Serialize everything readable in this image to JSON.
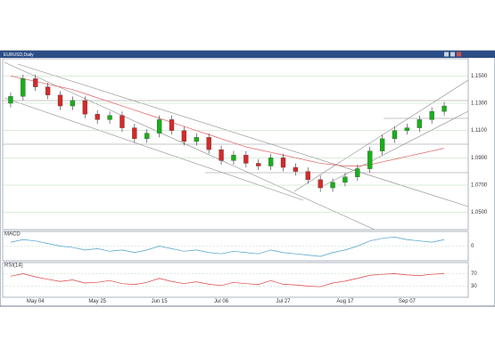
{
  "header": {
    "title": "EURUSD,Daily"
  },
  "chart_data": [
    {
      "type": "candlestick",
      "categories": [
        null,
        null,
        "May 04",
        null,
        null,
        null,
        null,
        "May 25",
        null,
        null,
        null,
        null,
        "Jun 15",
        null,
        null,
        null,
        null,
        "Jul 06",
        null,
        null,
        null,
        null,
        "Jul 27",
        null,
        null,
        null,
        null,
        "Aug 17",
        null,
        null,
        null,
        null,
        "Sep 07",
        null,
        null,
        null
      ],
      "opens": [
        1.13,
        1.135,
        1.148,
        1.142,
        1.136,
        1.128,
        1.132,
        1.122,
        1.118,
        1.121,
        1.112,
        1.104,
        1.108,
        1.118,
        1.11,
        1.102,
        1.105,
        1.096,
        1.088,
        1.092,
        1.086,
        1.084,
        1.09,
        1.083,
        1.08,
        1.074,
        1.068,
        1.072,
        1.076,
        1.082,
        1.095,
        1.104,
        1.11,
        1.112,
        1.118,
        1.124
      ],
      "highs": [
        1.138,
        1.151,
        1.151,
        1.145,
        1.139,
        1.135,
        1.135,
        1.125,
        1.124,
        1.124,
        1.115,
        1.111,
        1.121,
        1.121,
        1.113,
        1.108,
        1.108,
        1.099,
        1.095,
        1.095,
        1.089,
        1.093,
        1.093,
        1.086,
        1.083,
        1.077,
        1.075,
        1.079,
        1.085,
        1.098,
        1.107,
        1.113,
        1.115,
        1.121,
        1.127,
        1.131
      ],
      "lows": [
        1.127,
        1.132,
        1.139,
        1.133,
        1.125,
        1.125,
        1.119,
        1.115,
        1.115,
        1.109,
        1.101,
        1.101,
        1.105,
        1.107,
        1.099,
        1.099,
        1.093,
        1.085,
        1.085,
        1.083,
        1.081,
        1.081,
        1.08,
        1.077,
        1.071,
        1.065,
        1.065,
        1.069,
        1.073,
        1.079,
        1.092,
        1.101,
        1.107,
        1.109,
        1.115,
        1.121
      ],
      "closes": [
        1.135,
        1.148,
        1.142,
        1.136,
        1.128,
        1.132,
        1.122,
        1.118,
        1.121,
        1.112,
        1.104,
        1.108,
        1.118,
        1.11,
        1.102,
        1.105,
        1.096,
        1.088,
        1.092,
        1.086,
        1.084,
        1.09,
        1.083,
        1.08,
        1.074,
        1.068,
        1.072,
        1.076,
        1.082,
        1.095,
        1.104,
        1.11,
        1.112,
        1.118,
        1.124,
        1.128
      ],
      "up_color": "#18b018",
      "down_color": "#d42a2a",
      "ma_values": [
        1.15,
        1.148,
        1.146,
        1.144,
        1.142,
        1.14,
        1.137,
        1.134,
        1.131,
        1.128,
        1.125,
        1.122,
        1.119,
        1.116,
        1.113,
        1.11,
        1.107,
        1.104,
        1.101,
        1.098,
        1.096,
        1.094,
        1.092,
        1.09,
        1.088,
        1.086,
        1.085,
        1.084,
        1.084,
        1.085,
        1.087,
        1.089,
        1.091,
        1.093,
        1.095,
        1.097
      ],
      "ma_color": "#e06060",
      "ylim": [
        1.04,
        1.16
      ],
      "yticks": [
        {
          "value": 1.05,
          "label": "1.0500"
        },
        {
          "value": 1.07,
          "label": "1.0700"
        },
        {
          "value": 1.09,
          "label": "1.0900"
        },
        {
          "value": 1.11,
          "label": "1.1100"
        },
        {
          "value": 1.13,
          "label": "1.1300"
        },
        {
          "value": 1.15,
          "label": "1.1500"
        }
      ]
    },
    {
      "type": "line",
      "title": "MACD",
      "series": [
        {
          "color": "#4aa0c8",
          "values": [
            0.3,
            0.5,
            0.4,
            0.2,
            0,
            -0.1,
            -0.3,
            -0.2,
            -0.4,
            -0.3,
            -0.5,
            -0.3,
            0,
            -0.2,
            -0.4,
            -0.3,
            -0.5,
            -0.6,
            -0.4,
            -0.5,
            -0.6,
            -0.3,
            -0.5,
            -0.6,
            -0.7,
            -0.8,
            -0.5,
            -0.3,
            0,
            0.4,
            0.6,
            0.7,
            0.5,
            0.4,
            0.3,
            0.5
          ]
        }
      ],
      "ylim": [
        -1,
        1
      ],
      "yticks": [
        0
      ]
    },
    {
      "type": "line",
      "title": "RSI(14)",
      "series": [
        {
          "color": "#e04040",
          "values": [
            62,
            70,
            60,
            52,
            45,
            50,
            40,
            42,
            48,
            38,
            35,
            42,
            55,
            45,
            38,
            44,
            36,
            32,
            42,
            38,
            35,
            48,
            36,
            34,
            30,
            28,
            40,
            46,
            55,
            65,
            68,
            70,
            66,
            64,
            68,
            70
          ]
        }
      ],
      "ylim": [
        0,
        100
      ],
      "yticks": [
        30,
        70
      ]
    }
  ]
}
